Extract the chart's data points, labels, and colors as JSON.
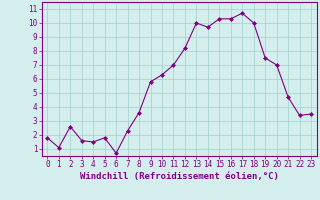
{
  "x": [
    0,
    1,
    2,
    3,
    4,
    5,
    6,
    7,
    8,
    9,
    10,
    11,
    12,
    13,
    14,
    15,
    16,
    17,
    18,
    19,
    20,
    21,
    22,
    23
  ],
  "y": [
    1.8,
    1.1,
    2.6,
    1.6,
    1.5,
    1.8,
    0.7,
    2.3,
    3.6,
    5.8,
    6.3,
    7.0,
    8.2,
    10.0,
    9.7,
    10.3,
    10.3,
    10.7,
    10.0,
    7.5,
    7.0,
    4.7,
    3.4,
    3.5
  ],
  "line_color": "#800080",
  "marker": "D",
  "marker_size": 2,
  "bg_color": "#d4eeed",
  "grid_color": "#aad4d0",
  "xlabel": "Windchill (Refroidissement éolien,°C)",
  "xlim": [
    -0.5,
    23.5
  ],
  "ylim": [
    0.5,
    11.5
  ],
  "xticks": [
    0,
    1,
    2,
    3,
    4,
    5,
    6,
    7,
    8,
    9,
    10,
    11,
    12,
    13,
    14,
    15,
    16,
    17,
    18,
    19,
    20,
    21,
    22,
    23
  ],
  "yticks": [
    1,
    2,
    3,
    4,
    5,
    6,
    7,
    8,
    9,
    10,
    11
  ],
  "tick_fontsize": 5.5,
  "xlabel_fontsize": 6.5,
  "spine_color": "#800080"
}
